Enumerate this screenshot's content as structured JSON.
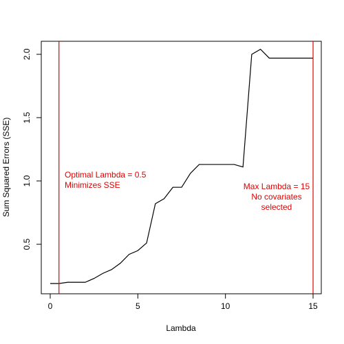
{
  "chart_data": {
    "type": "line",
    "x": [
      0,
      0.5,
      1,
      1.5,
      2,
      2.5,
      3,
      3.5,
      4,
      4.5,
      5,
      5.5,
      6,
      6.5,
      7,
      7.5,
      8,
      8.5,
      9,
      9.5,
      10,
      10.5,
      11,
      11.5,
      12,
      12.5,
      13,
      13.5,
      14,
      14.5,
      15
    ],
    "series": [
      {
        "color": "#000000",
        "values": [
          0.19,
          0.19,
          0.2,
          0.2,
          0.2,
          0.23,
          0.27,
          0.3,
          0.35,
          0.42,
          0.45,
          0.51,
          0.82,
          0.86,
          0.95,
          0.95,
          1.06,
          1.13,
          1.13,
          1.13,
          1.13,
          1.13,
          1.11,
          2.0,
          2.04,
          1.97,
          1.97,
          1.97,
          1.97,
          1.97,
          1.97
        ]
      }
    ],
    "x_label": "Lambda",
    "y_label": "Sum Squared Errors (SSE)",
    "xlim": [
      -0.51,
      15.47
    ],
    "ylim": [
      0.109,
      2.103
    ],
    "xticks": [
      0,
      5,
      10,
      15
    ],
    "yticks": [
      0.5,
      {
        "value": 1,
        "label": "1.0"
      },
      1.5,
      {
        "value": 2,
        "label": "2.0"
      }
    ],
    "vlines": {
      "color": "#e00000",
      "values": [
        0.5,
        15
      ]
    },
    "annotations": [
      {
        "color": "#e00000",
        "lines": [
          "Optimal Lambda = 0.5",
          "Minimizes SSE"
        ]
      },
      {
        "color": "#e00000",
        "lines": [
          "Max Lambda = 15",
          "No covariates",
          "selected"
        ]
      }
    ]
  }
}
